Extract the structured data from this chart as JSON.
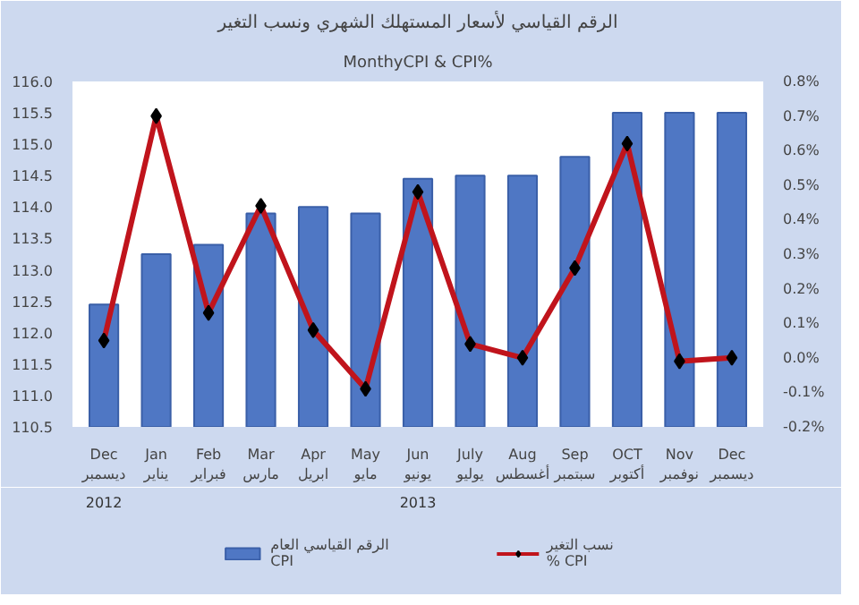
{
  "chart_data": {
    "type": "bar",
    "title": "الرقم القياسي لأسعار المستهلك الشهري ونسب التغير",
    "subtitle": "MonthyCPI & CPI%",
    "categories": [
      "Dec\nديسمبر",
      "Jan\nيناير",
      "Feb\nفبراير",
      "Mar\nمارس",
      "Apr\nابريل",
      "May\nمايو",
      "Jun\nيونيو",
      "July\nيوليو",
      "Aug\nأغسطس",
      "Sep\nسبتمبر",
      "OCT\nأكتوبر",
      "Nov\nنوفمبر",
      "Dec\nديسمبر"
    ],
    "series": [
      {
        "name": "الرقم القياسي العام\nCPI",
        "color": "#4f77c4",
        "values": [
          112.45,
          113.25,
          113.4,
          113.9,
          114.0,
          113.9,
          114.45,
          114.5,
          114.5,
          114.8,
          115.5,
          115.5,
          115.5
        ]
      },
      {
        "name": "نسب التغير\n% CPI",
        "type": "line",
        "axis": "y2",
        "color": "#c0141c",
        "marker": "diamond",
        "values": [
          0.05,
          0.7,
          0.13,
          0.44,
          0.08,
          -0.09,
          0.48,
          0.04,
          0.0,
          0.26,
          0.62,
          -0.01,
          0.0
        ]
      }
    ],
    "ylim": [
      110.5,
      116.0
    ],
    "yticks": [
      {
        "value": 110.5,
        "label": "110.5"
      },
      {
        "value": 111.0,
        "label": "111.0"
      },
      {
        "value": 111.5,
        "label": "111.5"
      },
      {
        "value": 112.0,
        "label": "112.0"
      },
      {
        "value": 112.5,
        "label": "112.5"
      },
      {
        "value": 113.0,
        "label": "113.0"
      },
      {
        "value": 113.5,
        "label": "113.5"
      },
      {
        "value": 114.0,
        "label": "114.0"
      },
      {
        "value": 114.5,
        "label": "114.5"
      },
      {
        "value": 115.0,
        "label": "115.0"
      },
      {
        "value": 115.5,
        "label": "115.5"
      },
      {
        "value": 116.0,
        "label": "116.0"
      }
    ],
    "y2lim": [
      -0.2,
      0.8
    ],
    "y2ticks": [
      {
        "value": -0.2,
        "label": "-0.2%"
      },
      {
        "value": -0.1,
        "label": "-0.1%"
      },
      {
        "value": 0.0,
        "label": "0.0%"
      },
      {
        "value": 0.1,
        "label": "0.1%"
      },
      {
        "value": 0.2,
        "label": "0.2%"
      },
      {
        "value": 0.3,
        "label": "0.3%"
      },
      {
        "value": 0.4,
        "label": "0.4%"
      },
      {
        "value": 0.5,
        "label": "0.5%"
      },
      {
        "value": 0.6,
        "label": "0.6%"
      },
      {
        "value": 0.7,
        "label": "0.7%"
      },
      {
        "value": 0.8,
        "label": "0.8%"
      }
    ],
    "annotations": [
      "2012",
      "2013"
    ],
    "legend": "bottom"
  }
}
